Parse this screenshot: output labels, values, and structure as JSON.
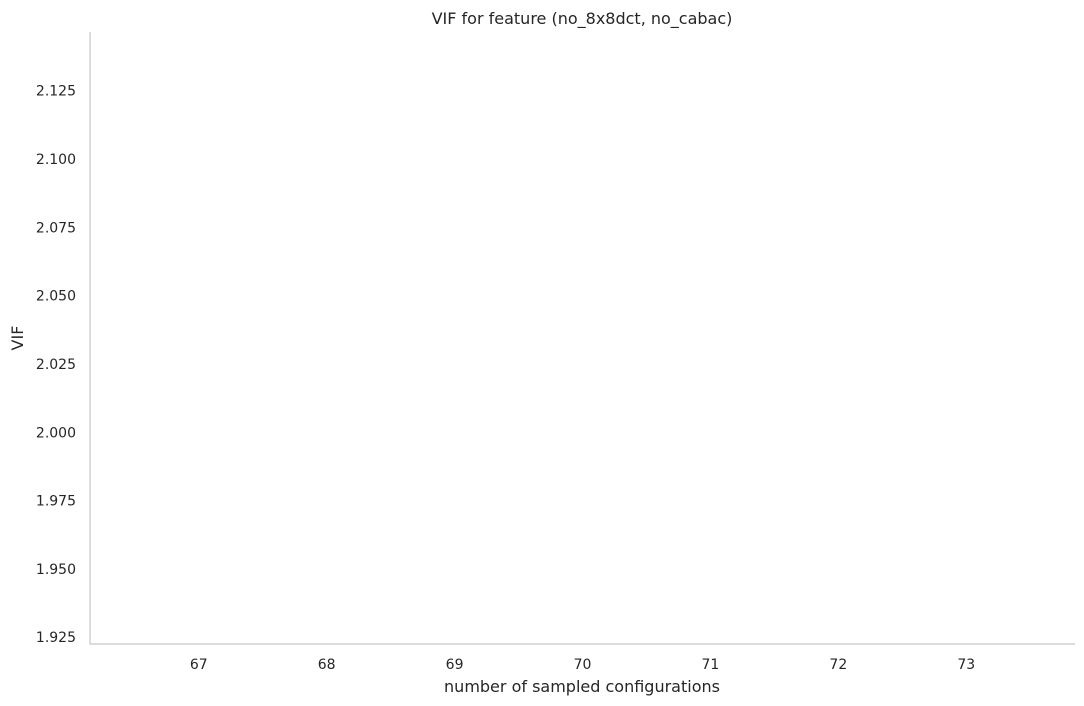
{
  "chart_data": {
    "type": "line",
    "title": "VIF for feature (no_8x8dct, no_cabac)",
    "xlabel": "number of sampled configurations",
    "ylabel": "VIF",
    "x_ticks": [
      67,
      68,
      69,
      70,
      71,
      72,
      73
    ],
    "y_ticks": [
      1.925,
      1.95,
      1.975,
      2.0,
      2.025,
      2.05,
      2.075,
      2.1,
      2.125
    ],
    "y_tick_labels": [
      "1.925",
      "1.950",
      "1.975",
      "2.000",
      "2.025",
      "2.050",
      "2.075",
      "2.100",
      "2.125"
    ],
    "xlim": [
      66.15,
      73.85
    ],
    "ylim": [
      1.9225,
      2.1465
    ],
    "grid": false,
    "legend": "none",
    "series": [],
    "colors": {
      "spine": "#c8c8c8",
      "text": "#262626"
    }
  }
}
